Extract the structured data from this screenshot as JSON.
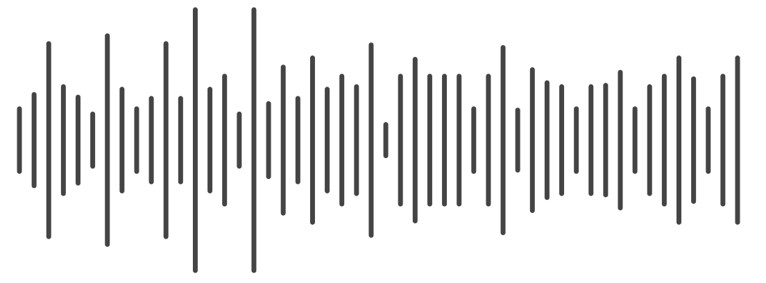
{
  "waveform": {
    "icon": "audio-waveform-icon",
    "bar_color": "#444444",
    "background": "#ffffff",
    "bar_count": 50,
    "amplitudes": [
      0.24,
      0.35,
      0.74,
      0.41,
      0.33,
      0.2,
      0.8,
      0.39,
      0.24,
      0.32,
      0.74,
      0.32,
      1.0,
      0.39,
      0.49,
      0.2,
      1.0,
      0.28,
      0.56,
      0.32,
      0.63,
      0.39,
      0.49,
      0.41,
      0.73,
      0.12,
      0.49,
      0.62,
      0.49,
      0.49,
      0.49,
      0.24,
      0.49,
      0.71,
      0.23,
      0.54,
      0.44,
      0.41,
      0.24,
      0.41,
      0.42,
      0.52,
      0.24,
      0.41,
      0.49,
      0.63,
      0.47,
      0.24,
      0.49,
      0.63
    ]
  }
}
